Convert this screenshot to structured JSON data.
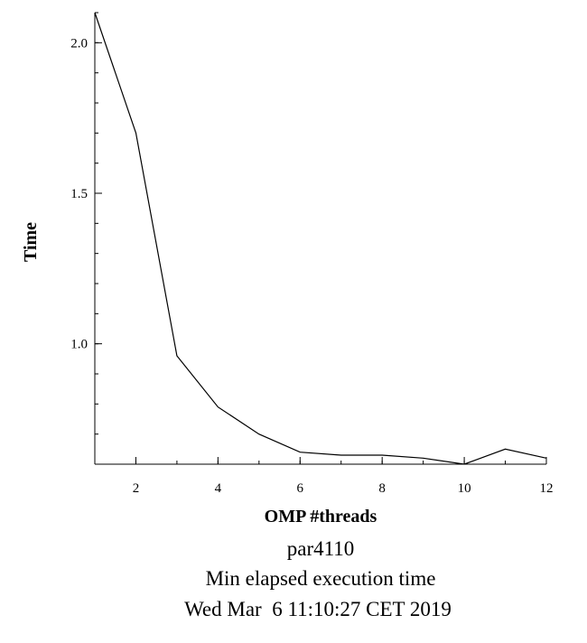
{
  "chart_data": {
    "type": "line",
    "xlabel": "OMP #threads",
    "ylabel": "Time",
    "xlim": [
      1,
      12
    ],
    "ylim": [
      0.6,
      2.1
    ],
    "x_ticks": [
      2,
      4,
      6,
      8,
      10,
      12
    ],
    "x_tick_labels": [
      "2",
      "4",
      "6",
      "8",
      "10",
      "12"
    ],
    "y_ticks": [
      1.0,
      1.5,
      2.0
    ],
    "y_tick_labels": [
      "1.0",
      "1.5",
      "2.0"
    ],
    "y_minor_step": 0.1,
    "grid": false,
    "series": [
      {
        "x": [
          1,
          2,
          3,
          4,
          5,
          6,
          7,
          8,
          9,
          10,
          11,
          12
        ],
        "y": [
          2.1,
          1.7,
          0.96,
          0.79,
          0.7,
          0.64,
          0.63,
          0.63,
          0.62,
          0.6,
          0.65,
          0.62
        ]
      }
    ]
  },
  "captions": {
    "line1": "par4110",
    "line2": "Min elapsed execution time",
    "line3": "Wed Mar  6 11:10:27 CET 2019"
  }
}
